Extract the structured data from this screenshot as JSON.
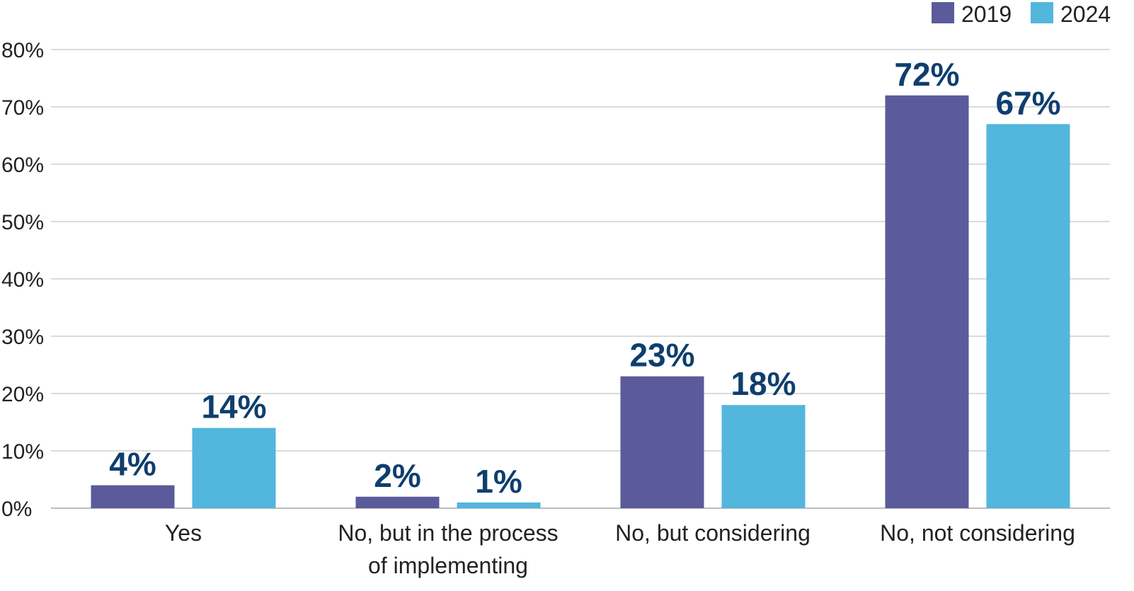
{
  "chart_data": {
    "type": "bar",
    "categories": [
      [
        "Yes"
      ],
      [
        "No, but in the process",
        "of implementing"
      ],
      [
        "No, but considering"
      ],
      [
        "No, not considering"
      ]
    ],
    "series": [
      {
        "name": "2019",
        "color": "#5b5a9b",
        "values": [
          4,
          2,
          23,
          72
        ],
        "labels": [
          "4%",
          "2%",
          "23%",
          "72%"
        ]
      },
      {
        "name": "2024",
        "color": "#53b6dd",
        "values": [
          14,
          1,
          18,
          67
        ],
        "labels": [
          "14%",
          "1%",
          "18%",
          "67%"
        ]
      }
    ],
    "ylim": [
      0,
      80
    ],
    "yticks": [
      0,
      10,
      20,
      30,
      40,
      50,
      60,
      70,
      80
    ],
    "ytick_labels": [
      "0%",
      "10%",
      "20%",
      "30%",
      "40%",
      "50%",
      "60%",
      "70%",
      "80%"
    ],
    "grid": true,
    "legend": "top-right",
    "title": "",
    "xlabel": "",
    "ylabel": ""
  }
}
